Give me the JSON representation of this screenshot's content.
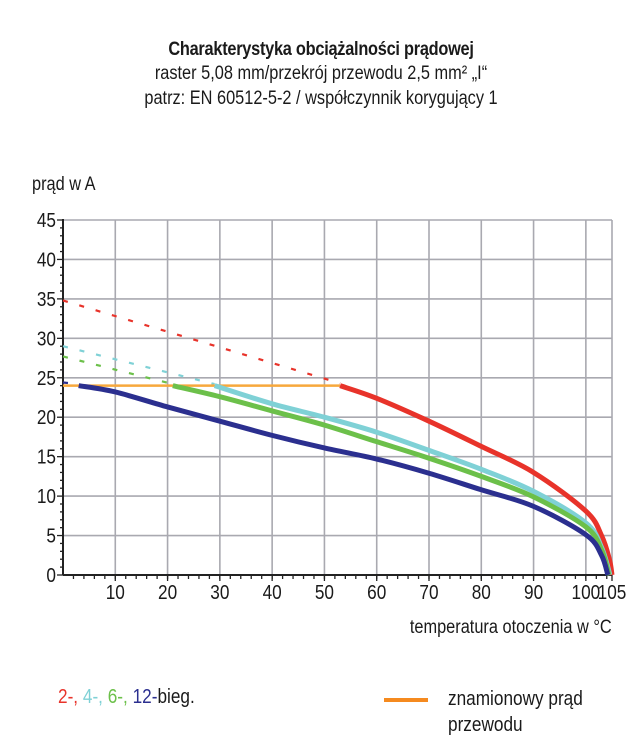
{
  "chart_data": {
    "type": "line",
    "title": "Charakterystyka obciążalności prądowej",
    "subtitle_lines": [
      "raster 5,08 mm/przekrój przewodu 2,5 mm² „I“",
      "patrz: EN 60512-5-2 / współczynnik korygujący 1"
    ],
    "xlabel": "temperatura otoczenia w °C",
    "ylabel": "prąd w A",
    "xlim": [
      0,
      105
    ],
    "ylim": [
      0,
      45
    ],
    "x_ticks": [
      10,
      20,
      30,
      40,
      50,
      60,
      70,
      80,
      90,
      100,
      105
    ],
    "y_ticks": [
      0,
      5,
      10,
      15,
      20,
      25,
      30,
      35,
      40,
      45
    ],
    "grid": true,
    "series": [
      {
        "name": "2-bieg.",
        "legend_label": "2-",
        "color": "#e8332a",
        "dashed_points": [
          [
            0,
            34.8
          ],
          [
            53,
            24.3
          ]
        ],
        "points": [
          [
            53,
            24.0
          ],
          [
            60,
            22.4
          ],
          [
            70,
            19.5
          ],
          [
            80,
            16.3
          ],
          [
            90,
            13.0
          ],
          [
            100,
            8.1
          ],
          [
            103,
            5.0
          ],
          [
            104.5,
            2.0
          ],
          [
            105,
            0
          ]
        ]
      },
      {
        "name": "4-bieg.",
        "legend_label": "4-",
        "color": "#7fd1d6",
        "dashed_points": [
          [
            0,
            29.0
          ],
          [
            29,
            24.2
          ]
        ],
        "points": [
          [
            29,
            24.0
          ],
          [
            40,
            21.7
          ],
          [
            50,
            20.0
          ],
          [
            60,
            18.1
          ],
          [
            70,
            15.8
          ],
          [
            80,
            13.4
          ],
          [
            90,
            10.6
          ],
          [
            100,
            6.6
          ],
          [
            103,
            3.5
          ],
          [
            104.6,
            0
          ]
        ]
      },
      {
        "name": "6-bieg.",
        "legend_label": "6-",
        "color": "#6cc04a",
        "dashed_points": [
          [
            0,
            27.7
          ],
          [
            21,
            24.2
          ]
        ],
        "points": [
          [
            21,
            24.0
          ],
          [
            30,
            22.6
          ],
          [
            40,
            20.8
          ],
          [
            50,
            19.0
          ],
          [
            60,
            16.9
          ],
          [
            70,
            14.8
          ],
          [
            80,
            12.5
          ],
          [
            90,
            9.9
          ],
          [
            100,
            6.1
          ],
          [
            103,
            3.2
          ],
          [
            104.4,
            0
          ]
        ]
      },
      {
        "name": "12-bieg.",
        "legend_label": "12-",
        "color": "#2b2f8f",
        "dashed_points": [
          [
            0,
            24.4
          ],
          [
            3,
            24.2
          ]
        ],
        "points": [
          [
            3,
            24.0
          ],
          [
            10,
            23.2
          ],
          [
            20,
            21.3
          ],
          [
            30,
            19.5
          ],
          [
            40,
            17.7
          ],
          [
            50,
            16.1
          ],
          [
            60,
            14.7
          ],
          [
            70,
            12.9
          ],
          [
            80,
            10.8
          ],
          [
            90,
            8.7
          ],
          [
            100,
            5.1
          ],
          [
            103,
            2.5
          ],
          [
            104.2,
            0
          ]
        ]
      }
    ],
    "reference_line": {
      "name": "znamionowy prąd przewodu",
      "color": "#f7a83c",
      "points": [
        [
          0,
          24
        ],
        [
          53,
          24
        ]
      ]
    },
    "legend": {
      "series_suffix": "bieg.",
      "series_placement": "bottom-left",
      "reference_label": "znamionowy prąd przewodu",
      "reference_placement": "bottom-right",
      "reference_swatch_color": "#f58a1f"
    }
  }
}
